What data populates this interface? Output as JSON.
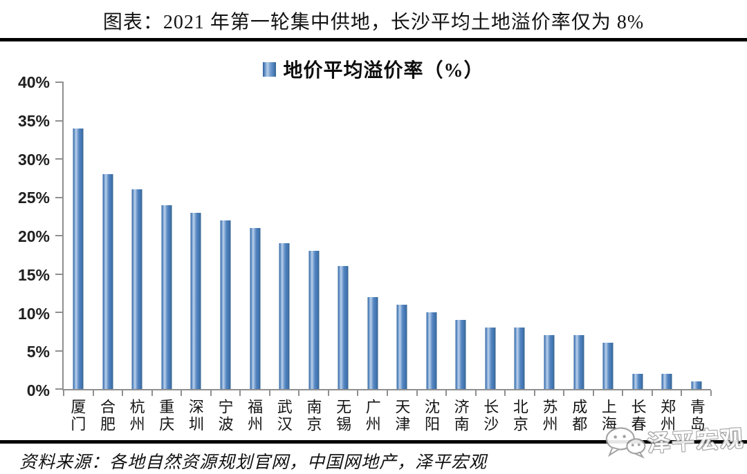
{
  "chart_data": {
    "type": "bar",
    "title": "图表：2021 年第一轮集中供地，长沙平均土地溢价率仅为 8%",
    "legend": [
      "地价平均溢价率（%）"
    ],
    "legend_position": "top-center",
    "categories": [
      "厦门",
      "合肥",
      "杭州",
      "重庆",
      "深圳",
      "宁波",
      "福州",
      "武汉",
      "南京",
      "无锡",
      "广州",
      "天津",
      "沈阳",
      "济南",
      "长沙",
      "北京",
      "苏州",
      "成都",
      "上海",
      "长春",
      "郑州",
      "青岛"
    ],
    "values": [
      34,
      28,
      26,
      24,
      23,
      22,
      21,
      19,
      18,
      16,
      12,
      11,
      10,
      9,
      8,
      8,
      7,
      7,
      6,
      2,
      2,
      1
    ],
    "xlabel": "",
    "ylabel": "",
    "ylim": [
      0,
      40
    ],
    "ytick_step": 5,
    "ytick_labels": [
      "0%",
      "5%",
      "10%",
      "15%",
      "20%",
      "25%",
      "30%",
      "35%",
      "40%"
    ],
    "grid": false,
    "bar_color": "#4f81bd",
    "bar_gradient_edges": "#2f5c92",
    "bar_gradient_highlight": "#bdd2ec",
    "axis_color": "#8f8f8f"
  },
  "footer": {
    "source": "资料来源：各地自然资源规划官网，中国网地产，泽平宏观",
    "watermark_text": "泽平宏观",
    "watermark_icon": "wechat-icon"
  }
}
